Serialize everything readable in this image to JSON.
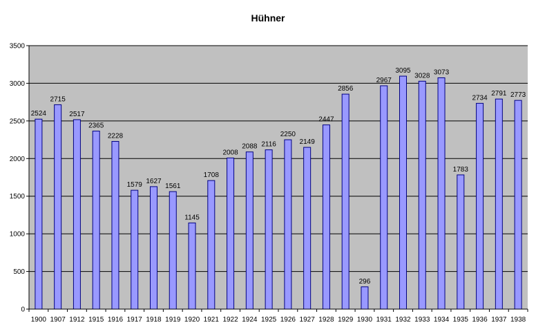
{
  "chart_data": {
    "type": "bar",
    "title": "Hühner",
    "xlabel": "",
    "ylabel": "",
    "categories": [
      "1900",
      "1907",
      "1912",
      "1915",
      "1916",
      "1917",
      "1918",
      "1919",
      "1920",
      "1921",
      "1922",
      "1924",
      "1925",
      "1926",
      "1927",
      "1928",
      "1929",
      "1930",
      "1931",
      "1932",
      "1933",
      "1934",
      "1935",
      "1936",
      "1937",
      "1938"
    ],
    "values": [
      2524,
      2715,
      2517,
      2365,
      2228,
      1579,
      1627,
      1561,
      1145,
      1708,
      2008,
      2088,
      2116,
      2250,
      2149,
      2447,
      2856,
      296,
      2967,
      3095,
      3028,
      3073,
      1783,
      2734,
      2791,
      2773
    ],
    "data_labels": [
      "2524",
      "2715",
      "2517",
      "2365",
      "2228",
      "1579",
      "1627",
      "1561",
      "1145",
      "1708",
      "2008",
      "2088",
      "2116",
      "2250",
      "2149",
      "2447",
      "2856",
      "296",
      "2967",
      "3095",
      "3028",
      "3073",
      "1783",
      "2734",
      "2791",
      "2773"
    ],
    "ylim": [
      0,
      3500
    ],
    "yticks": [
      "0",
      "500",
      "1000",
      "1500",
      "2000",
      "2500",
      "3000",
      "3500"
    ],
    "grid": true,
    "legend": false,
    "colors": {
      "bar_fill": "#9999FF",
      "bar_stroke": "#000080",
      "plot_background": "#C0C0C0",
      "grid": "#000000",
      "axis": "#000000"
    }
  }
}
